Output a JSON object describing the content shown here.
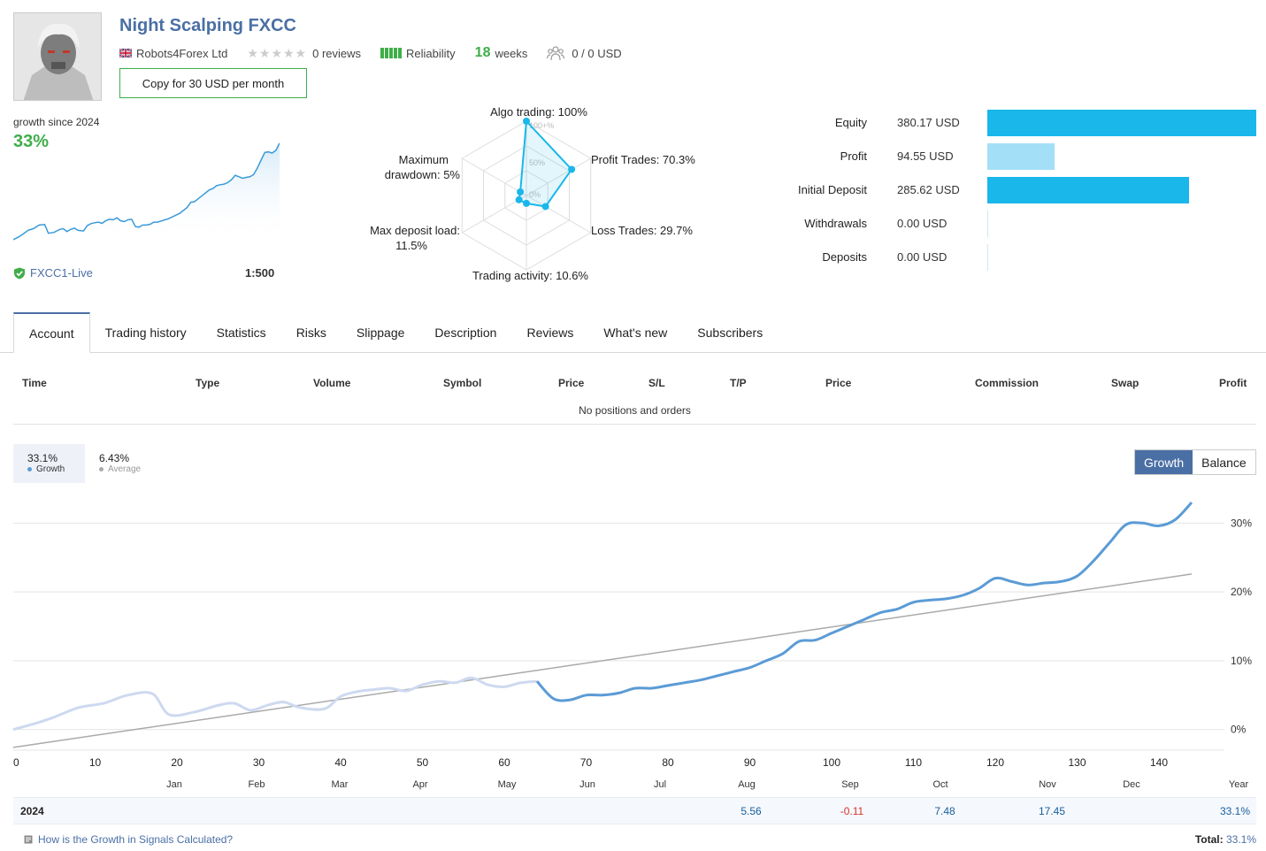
{
  "header": {
    "title": "Night Scalping FXCC",
    "provider": "Robots4Forex Ltd",
    "reviews": "0 reviews",
    "reliability_label": "Reliability",
    "weeks_num": "18",
    "weeks_label": "weeks",
    "subscribers": "0 / 0 USD",
    "copy_button": "Copy for 30 USD per month"
  },
  "growth_summary": {
    "since_label": "growth since 2024",
    "value": "33%",
    "server": "FXCC1-Live",
    "leverage": "1:500"
  },
  "radar": {
    "axes": [
      {
        "label": "Algo trading: 100%",
        "value": 100
      },
      {
        "label": "Profit Trades: 70.3%",
        "value": 70.3
      },
      {
        "label": "Loss Trades: 29.7%",
        "value": 29.7
      },
      {
        "label": "Trading activity: 10.6%",
        "value": 10.6
      },
      {
        "label": "Max deposit load: 11.5%",
        "value": 11.5
      },
      {
        "label": "Maximum drawdown: 5%",
        "value": 5
      }
    ],
    "scale_labels": [
      "100+%",
      "50%",
      "0%"
    ]
  },
  "balance_bars": [
    {
      "label": "Equity",
      "value": "380.17 USD",
      "amount": 380.17,
      "color": "#1ab7ea"
    },
    {
      "label": "Profit",
      "value": "94.55 USD",
      "amount": 94.55,
      "color": "#a3dff7"
    },
    {
      "label": "Initial Deposit",
      "value": "285.62 USD",
      "amount": 285.62,
      "color": "#1ab7ea"
    },
    {
      "label": "Withdrawals",
      "value": "0.00 USD",
      "amount": 0,
      "color": "#1ab7ea"
    },
    {
      "label": "Deposits",
      "value": "0.00 USD",
      "amount": 0,
      "color": "#1ab7ea"
    }
  ],
  "tabs": [
    "Account",
    "Trading history",
    "Statistics",
    "Risks",
    "Slippage",
    "Description",
    "Reviews",
    "What's new",
    "Subscribers"
  ],
  "positions": {
    "columns": [
      "Time",
      "Type",
      "Volume",
      "Symbol",
      "Price",
      "S/L",
      "T/P",
      "Price",
      "Commission",
      "Swap",
      "Profit"
    ],
    "empty_text": "No positions and orders"
  },
  "legend": {
    "growth_value": "33.1%",
    "growth_label": "Growth",
    "average_value": "6.43%",
    "average_label": "Average"
  },
  "toggle": {
    "growth": "Growth",
    "balance": "Balance"
  },
  "chart_data": {
    "type": "line",
    "x_ticks": [
      "0",
      "10",
      "20",
      "30",
      "40",
      "50",
      "60",
      "70",
      "80",
      "90",
      "100",
      "110",
      "120",
      "130",
      "140"
    ],
    "months": [
      "Jan",
      "Feb",
      "Mar",
      "Apr",
      "May",
      "Jun",
      "Jul",
      "Aug",
      "Sep",
      "Oct",
      "Nov",
      "Dec",
      "Year"
    ],
    "y_ticks": [
      "30%",
      "20%",
      "10%",
      "0%"
    ],
    "ylim": [
      -3,
      33
    ],
    "series": [
      {
        "name": "Growth",
        "x": [
          0,
          3,
          5,
          8,
          11,
          14,
          17,
          19,
          22,
          25,
          27,
          29,
          31,
          33,
          35,
          38,
          40,
          42,
          44,
          46,
          48,
          50,
          52,
          54,
          56,
          58,
          60,
          62,
          64,
          66,
          68,
          70,
          72,
          74,
          76,
          78,
          80,
          82,
          84,
          86,
          88,
          90,
          92,
          94,
          96,
          98,
          100,
          102,
          104,
          106,
          108,
          110,
          112,
          114,
          116,
          118,
          120,
          122,
          124,
          126,
          128,
          130,
          132,
          134,
          136,
          138,
          140,
          142,
          144
        ],
        "y": [
          0,
          1,
          1.8,
          3.2,
          3.8,
          5,
          5.2,
          2.2,
          2.5,
          3.5,
          3.8,
          2.8,
          3.5,
          4,
          3.2,
          3,
          4.8,
          5.5,
          5.8,
          6,
          5.6,
          6.5,
          7,
          6.8,
          7.5,
          6.5,
          6.2,
          6.8,
          7,
          4.5,
          4.3,
          5,
          5,
          5.3,
          6,
          6,
          6.4,
          6.8,
          7.2,
          7.8,
          8.4,
          9,
          10,
          11,
          12.8,
          13,
          14,
          15,
          16,
          17,
          17.5,
          18.5,
          18.8,
          19,
          19.5,
          20.5,
          22,
          21.5,
          21,
          21.3,
          21.5,
          22.3,
          24.5,
          27.2,
          29.8,
          30,
          29.6,
          30.5,
          33
        ]
      },
      {
        "name": "Average",
        "x": [
          0,
          144
        ],
        "y": [
          -2.6,
          22.6
        ]
      }
    ]
  },
  "year_row": {
    "year": "2024",
    "values": [
      {
        "month": "Aug",
        "value": "5.56",
        "color": "#1a5fa0"
      },
      {
        "month": "Sep",
        "value": "-0.11",
        "color": "#d9342b"
      },
      {
        "month": "Oct",
        "value": "7.48",
        "color": "#1a5fa0"
      },
      {
        "month": "Nov",
        "value": "17.45",
        "color": "#1a5fa0"
      },
      {
        "month": "Year",
        "value": "33.1%",
        "color": "#1a5fa0"
      }
    ]
  },
  "footer": {
    "link": "How is the Growth in Signals Calculated?",
    "total_label": "Total:",
    "total_value": "33.1%"
  }
}
